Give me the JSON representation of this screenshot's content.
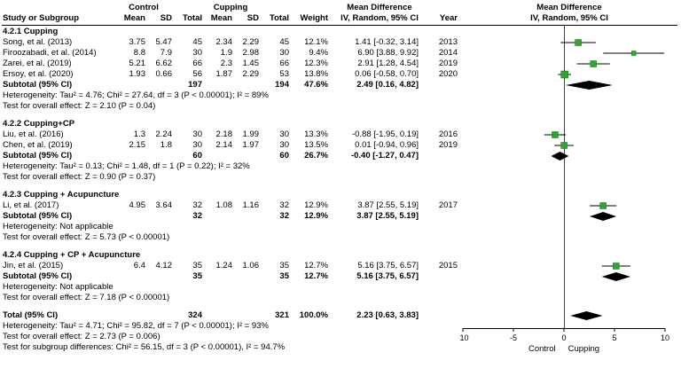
{
  "header": {
    "group1": "Control",
    "group2": "Cupping",
    "md_label": "Mean Difference",
    "col_study": "Study or Subgroup",
    "col_mean": "Mean",
    "col_sd": "SD",
    "col_total": "Total",
    "col_weight": "Weight",
    "col_iv": "IV, Random, 95% CI",
    "col_year": "Year"
  },
  "colors": {
    "marker_fill": "#2FA42F",
    "marker_stroke": "#1C701C",
    "diamond": "#000000",
    "ci_line": "#000000",
    "axis": "#000000",
    "zero_line": "#444444"
  },
  "chart_data": {
    "type": "scatter",
    "variant": "forest-plot",
    "effect_measure": "Mean Difference IV, Random, 95% CI",
    "xlim": [
      -10,
      10
    ],
    "x_ticks": [
      -10,
      -5,
      0,
      5,
      10
    ],
    "axis_left_label": "Control",
    "axis_right_label": "Cupping",
    "sections": [
      {
        "title": "4.2.1 Cupping",
        "studies": [
          {
            "label": "Song, et al. (2013)",
            "mean1": "3.75",
            "sd1": "5.47",
            "n1": "45",
            "mean2": "2.34",
            "sd2": "2.29",
            "n2": "45",
            "weight": "12.1%",
            "ci_text": "1.41 [-0.32, 3.14]",
            "year": "2013",
            "est": 1.41,
            "lo": -0.32,
            "hi": 3.14
          },
          {
            "label": "Firoozabadi, et al. (2014)",
            "mean1": "8.8",
            "sd1": "7.9",
            "n1": "30",
            "mean2": "1.9",
            "sd2": "2.98",
            "n2": "30",
            "weight": "9.4%",
            "ci_text": "6.90 [3.88, 9.92]",
            "year": "2014",
            "est": 6.9,
            "lo": 3.88,
            "hi": 9.92
          },
          {
            "label": "Zarei, et al. (2019)",
            "mean1": "5.21",
            "sd1": "6.62",
            "n1": "66",
            "mean2": "2.3",
            "sd2": "1.45",
            "n2": "66",
            "weight": "12.3%",
            "ci_text": "2.91 [1.28, 4.54]",
            "year": "2019",
            "est": 2.91,
            "lo": 1.28,
            "hi": 4.54
          },
          {
            "label": "Ersoy, et al. (2020)",
            "mean1": "1.93",
            "sd1": "0.66",
            "n1": "56",
            "mean2": "1.87",
            "sd2": "2.29",
            "n2": "53",
            "weight": "13.8%",
            "ci_text": "0.06 [-0.58, 0.70]",
            "year": "2020",
            "est": 0.06,
            "lo": -0.58,
            "hi": 0.7
          }
        ],
        "subtotal": {
          "label": "Subtotal (95% CI)",
          "n1": "197",
          "n2": "194",
          "weight": "47.6%",
          "ci_text": "2.49 [0.16, 4.82]",
          "est": 2.49,
          "lo": 0.16,
          "hi": 4.82
        },
        "footnotes": [
          "Heterogeneity: Tau² = 4.76; Chi² = 27.64, df = 3 (P < 0.00001); I² = 89%",
          "Test for overall effect: Z = 2.10 (P = 0.04)"
        ]
      },
      {
        "title": "4.2.2 Cupping+CP",
        "studies": [
          {
            "label": "Liu, et al. (2016)",
            "mean1": "1.3",
            "sd1": "2.24",
            "n1": "30",
            "mean2": "2.18",
            "sd2": "1.99",
            "n2": "30",
            "weight": "13.3%",
            "ci_text": "-0.88 [-1.95, 0.19]",
            "year": "2016",
            "est": -0.88,
            "lo": -1.95,
            "hi": 0.19
          },
          {
            "label": "Chen, et al. (2019)",
            "mean1": "2.15",
            "sd1": "1.8",
            "n1": "30",
            "mean2": "2.14",
            "sd2": "1.97",
            "n2": "30",
            "weight": "13.5%",
            "ci_text": "0.01 [-0.94, 0.96]",
            "year": "2019",
            "est": 0.01,
            "lo": -0.94,
            "hi": 0.96
          }
        ],
        "subtotal": {
          "label": "Subtotal (95% CI)",
          "n1": "60",
          "n2": "60",
          "weight": "26.7%",
          "ci_text": "-0.40 [-1.27, 0.47]",
          "est": -0.4,
          "lo": -1.27,
          "hi": 0.47
        },
        "footnotes": [
          "Heterogeneity: Tau² = 0.13; Chi² = 1.48, df = 1 (P = 0.22); I² = 32%",
          "Test for overall effect: Z = 0.90 (P = 0.37)"
        ]
      },
      {
        "title": "4.2.3 Cupping + Acupuncture",
        "studies": [
          {
            "label": "Li, et al. (2017)",
            "mean1": "4.95",
            "sd1": "3.64",
            "n1": "32",
            "mean2": "1.08",
            "sd2": "1.16",
            "n2": "32",
            "weight": "12.9%",
            "ci_text": "3.87 [2.55, 5.19]",
            "year": "2017",
            "est": 3.87,
            "lo": 2.55,
            "hi": 5.19
          }
        ],
        "subtotal": {
          "label": "Subtotal (95% CI)",
          "n1": "32",
          "n2": "32",
          "weight": "12.9%",
          "ci_text": "3.87 [2.55, 5.19]",
          "est": 3.87,
          "lo": 2.55,
          "hi": 5.19
        },
        "footnotes": [
          "Heterogeneity: Not applicable",
          "Test for overall effect: Z = 5.73 (P < 0.00001)"
        ]
      },
      {
        "title": "4.2.4 Cupping + CP + Acupuncture",
        "studies": [
          {
            "label": "Jin, et al. (2015)",
            "mean1": "6.4",
            "sd1": "4.12",
            "n1": "35",
            "mean2": "1.24",
            "sd2": "1.06",
            "n2": "35",
            "weight": "12.7%",
            "ci_text": "5.16 [3.75, 6.57]",
            "year": "2015",
            "est": 5.16,
            "lo": 3.75,
            "hi": 6.57
          }
        ],
        "subtotal": {
          "label": "Subtotal (95% CI)",
          "n1": "35",
          "n2": "35",
          "weight": "12.7%",
          "ci_text": "5.16 [3.75, 6.57]",
          "est": 5.16,
          "lo": 3.75,
          "hi": 6.57
        },
        "footnotes": [
          "Heterogeneity: Not applicable",
          "Test for overall effect: Z = 7.18 (P < 0.00001)"
        ]
      }
    ],
    "total": {
      "label": "Total (95% CI)",
      "n1": "324",
      "n2": "321",
      "weight": "100.0%",
      "ci_text": "2.23 [0.63, 3.83]",
      "est": 2.23,
      "lo": 0.63,
      "hi": 3.83
    },
    "total_footnotes": [
      "Heterogeneity: Tau² = 4.71; Chi² = 95.82, df = 7 (P < 0.00001); I² = 93%",
      "Test for overall effect: Z = 2.73 (P = 0.006)",
      "Test for subgroup differences: Chi² = 56.15, df = 3 (P < 0.00001), I² = 94.7%"
    ]
  }
}
